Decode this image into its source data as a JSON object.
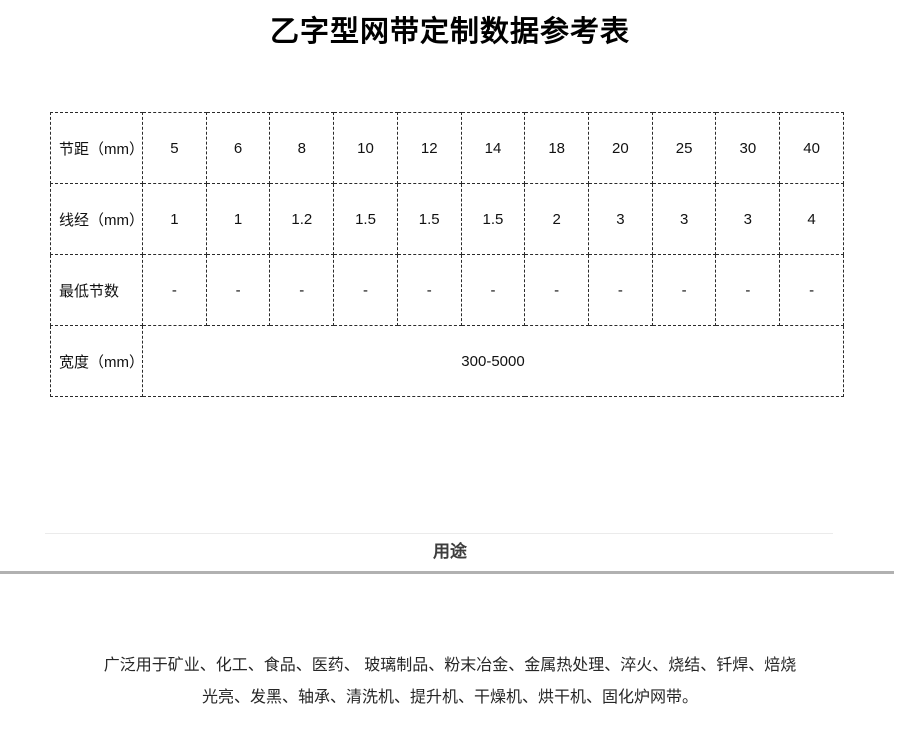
{
  "page": {
    "title": "乙字型网带定制数据参考表"
  },
  "table": {
    "rows": [
      {
        "label": "节距（mm）",
        "values": [
          "5",
          "6",
          "8",
          "10",
          "12",
          "14",
          "18",
          "20",
          "25",
          "30",
          "40"
        ]
      },
      {
        "label": "线经（mm）",
        "values": [
          "1",
          "1",
          "1.2",
          "1.5",
          "1.5",
          "1.5",
          "2",
          "3",
          "3",
          "3",
          "4"
        ]
      },
      {
        "label": "最低节数",
        "values": [
          "-",
          "-",
          "-",
          "-",
          "-",
          "-",
          "-",
          "-",
          "-",
          "-",
          "-"
        ]
      },
      {
        "label": "宽度（mm）",
        "merged_value": "300-5000"
      }
    ]
  },
  "usage": {
    "heading": "用途",
    "line1": "广泛用于矿业、化工、食品、医药、 玻璃制品、粉末冶金、金属热处理、淬火、烧结、钎焊、焙烧",
    "line2": "光亮、发黑、轴承、清洗机、提升机、干燥机、烘干机、固化炉网带。"
  },
  "colors": {
    "title_text": "#000000",
    "table_border": "#2b2b2b",
    "heading_text": "#3d3d3d",
    "thick_rule": "#b1b1b1",
    "thin_rule": "#ebebeb",
    "body_text": "#262626"
  }
}
